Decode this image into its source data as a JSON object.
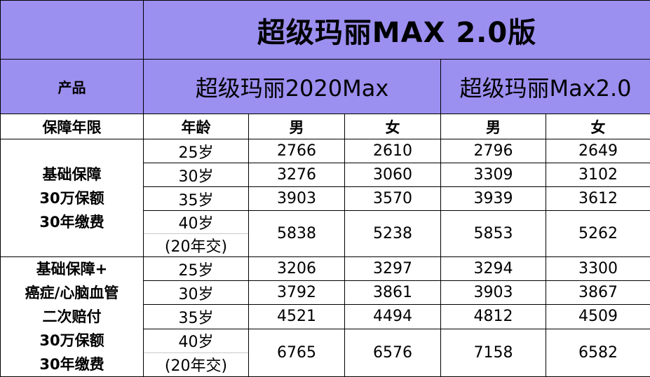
{
  "title": "超级玛丽MAX 2.0版",
  "product_label": "产品",
  "products": [
    "超级玛丽2020Max",
    "超级玛丽Max2.0"
  ],
  "header": {
    "term_label": "保障年限",
    "age_label": "年龄",
    "male": "男",
    "female": "女"
  },
  "colors": {
    "header_bg": "#9b8ff0",
    "header_text": "#ffffff"
  },
  "sections": [
    {
      "label_lines": [
        "基础保障",
        "30万保额",
        "30年缴费"
      ],
      "rows": [
        {
          "age": "25岁",
          "values": [
            "2766",
            "2610",
            "2796",
            "2649"
          ]
        },
        {
          "age": "30岁",
          "values": [
            "3276",
            "3060",
            "3309",
            "3102"
          ]
        },
        {
          "age": "35岁",
          "values": [
            "3903",
            "3570",
            "3939",
            "3612"
          ]
        },
        {
          "age": "40岁",
          "age_note": "(20年交)",
          "values": [
            "5838",
            "5238",
            "5853",
            "5262"
          ]
        }
      ]
    },
    {
      "label_lines": [
        "基础保障+",
        "癌症/心脑血管",
        "二次赔付",
        "30万保额",
        "30年缴费"
      ],
      "rows": [
        {
          "age": "25岁",
          "values": [
            "3206",
            "3297",
            "3294",
            "3300"
          ]
        },
        {
          "age": "30岁",
          "values": [
            "3792",
            "3861",
            "3903",
            "3867"
          ]
        },
        {
          "age": "35岁",
          "values": [
            "4521",
            "4494",
            "4812",
            "4509"
          ]
        },
        {
          "age": "40岁",
          "age_note": "(20年交)",
          "values": [
            "6765",
            "6576",
            "7158",
            "6582"
          ]
        }
      ]
    }
  ]
}
